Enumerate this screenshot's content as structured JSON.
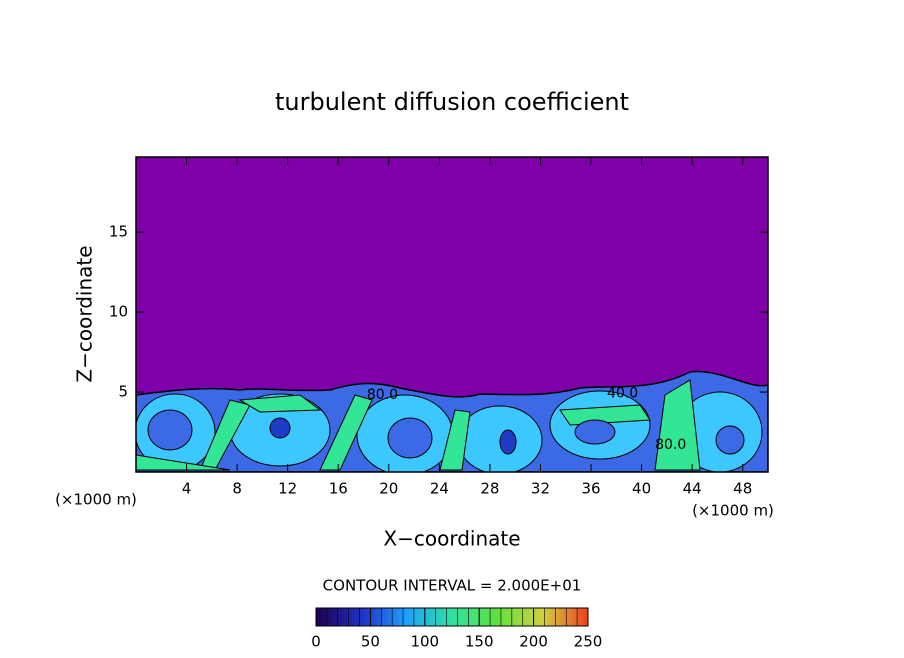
{
  "chart_data": {
    "type": "contour",
    "title": "turbulent diffusion coefficient",
    "x_label": "X−coordinate",
    "y_label": "Z−coordinate",
    "x_unit_label": "(×1000 m)",
    "y_unit_label": "(×1000 m)",
    "xlim": [
      0,
      50
    ],
    "ylim": [
      0,
      19.7
    ],
    "xticks": [
      4,
      8,
      12,
      16,
      20,
      24,
      28,
      32,
      36,
      40,
      44,
      48
    ],
    "yticks": [
      5,
      10,
      15
    ],
    "background_color": "#7f00a8",
    "contour_interval_label": "CONTOUR INTERVAL = 2.000E+01",
    "annotations": [
      {
        "text": "80.0",
        "x": 19.5,
        "y": 4.8
      },
      {
        "text": "40.0",
        "x": 38.5,
        "y": 4.9
      },
      {
        "text": "80.0",
        "x": 42.3,
        "y": 1.7
      }
    ],
    "colorbar": {
      "lim": [
        0,
        250
      ],
      "ticks": [
        0,
        50,
        100,
        150,
        200,
        250
      ],
      "colors": [
        "#1e0050",
        "#2030c0",
        "#20a0ff",
        "#30e0a0",
        "#60e040",
        "#d0d040",
        "#f04020"
      ]
    }
  }
}
